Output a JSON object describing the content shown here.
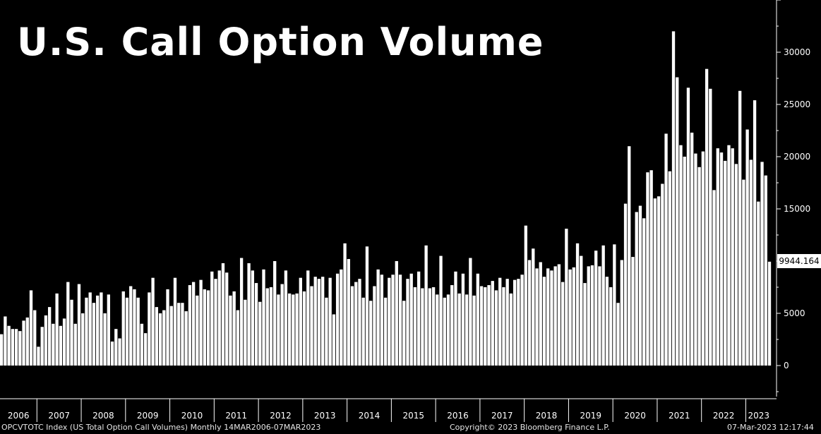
{
  "title": "U.S. Call Option Volume",
  "footer": {
    "ticker": "OPCVTOTC Index (US Total Option Call Volumes)  Monthly 14MAR2006-07MAR2023",
    "copyright": "Copyright© 2023 Bloomberg Finance L.P.",
    "timestamp": "07-Mar-2023 12:17:44"
  },
  "last_value_label": "9944.164",
  "colors": {
    "background": "#000000",
    "bars": "#ffffff",
    "axis": "#ffffff"
  },
  "chart_data": {
    "type": "bar",
    "title": "U.S. Call Option Volume",
    "xlabel": "",
    "ylabel": "",
    "ylim": [
      -3000,
      35000
    ],
    "yticks": [
      0,
      5000,
      10000,
      15000,
      20000,
      25000,
      30000
    ],
    "year_labels": [
      "2006",
      "2007",
      "2008",
      "2009",
      "2010",
      "2011",
      "2012",
      "2013",
      "2014",
      "2015",
      "2016",
      "2017",
      "2018",
      "2019",
      "2020",
      "2021",
      "2022",
      "2023"
    ],
    "start": "2006-03",
    "grid": false,
    "values": [
      3000,
      4700,
      3800,
      3500,
      3500,
      3300,
      4300,
      4600,
      7200,
      5300,
      1800,
      3700,
      4800,
      5600,
      4000,
      6900,
      3800,
      4500,
      8000,
      6300,
      4000,
      7800,
      5000,
      6500,
      7000,
      6000,
      6700,
      7000,
      5000,
      6800,
      2300,
      3500,
      2600,
      7100,
      6500,
      7600,
      7300,
      6500,
      4000,
      3100,
      7000,
      8400,
      5600,
      5000,
      5300,
      7300,
      5700,
      8400,
      6000,
      6000,
      5200,
      7700,
      8000,
      6700,
      8200,
      7300,
      7200,
      9000,
      8300,
      9100,
      9800,
      8900,
      6700,
      7100,
      5300,
      10300,
      6300,
      9800,
      9100,
      7900,
      6100,
      9200,
      7400,
      7500,
      10000,
      6800,
      7800,
      9100,
      6900,
      6800,
      6900,
      8400,
      7100,
      9100,
      7600,
      8500,
      8300,
      8500,
      6500,
      8400,
      4900,
      8800,
      9200,
      11700,
      10200,
      7600,
      8000,
      8300,
      6500,
      11400,
      6200,
      7600,
      9200,
      8700,
      6500,
      8400,
      8700,
      10000,
      8700,
      6200,
      8300,
      8800,
      7500,
      9000,
      7400,
      11500,
      7400,
      7500,
      6800,
      10500,
      6500,
      6800,
      7700,
      9000,
      6900,
      8800,
      6800,
      10300,
      6700,
      8800,
      7600,
      7500,
      7700,
      8100,
      7200,
      8400,
      7500,
      8300,
      6900,
      8200,
      8300,
      8700,
      13400,
      10100,
      11200,
      9300,
      9900,
      8500,
      9300,
      9100,
      9500,
      9700,
      8000,
      13100,
      9200,
      9400,
      11700,
      10500,
      7900,
      9500,
      9600,
      11000,
      9500,
      11500,
      8500,
      7500,
      11600,
      6000,
      10100,
      15500,
      21000,
      10400,
      14700,
      15300,
      14100,
      18500,
      18700,
      16000,
      16200,
      17400,
      22200,
      18600,
      32000,
      27600,
      21100,
      20000,
      26600,
      22300,
      20300,
      19000,
      20500,
      28400,
      26500,
      16800,
      20800,
      20400,
      19600,
      21100,
      20800,
      19300,
      26300,
      17800,
      22600,
      19700,
      25400,
      15700,
      19500,
      18200,
      9944
    ]
  }
}
